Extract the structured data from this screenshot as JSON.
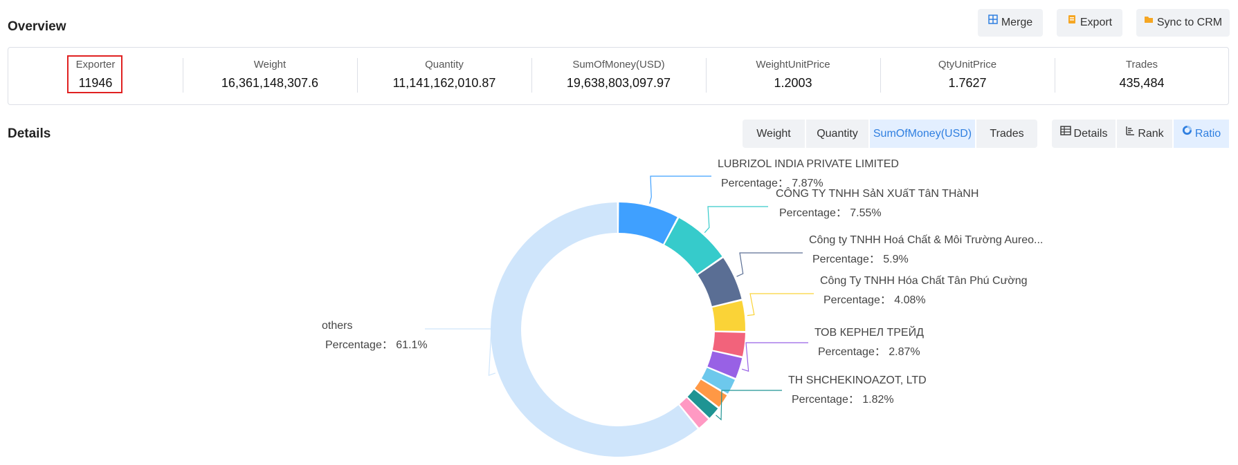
{
  "overview": {
    "title": "Overview",
    "merge_label": "Merge",
    "export_label": "Export",
    "sync_label": "Sync to CRM",
    "stats": [
      {
        "label": "Exporter",
        "value": "11946"
      },
      {
        "label": "Weight",
        "value": "16,361,148,307.6"
      },
      {
        "label": "Quantity",
        "value": "11,141,162,010.87"
      },
      {
        "label": "SumOfMoney(USD)",
        "value": "19,638,803,097.97"
      },
      {
        "label": "WeightUnitPrice",
        "value": "1.2003"
      },
      {
        "label": "QtyUnitPrice",
        "value": "1.7627"
      },
      {
        "label": "Trades",
        "value": "435,484"
      }
    ]
  },
  "details": {
    "title": "Details",
    "metric_tabs": [
      {
        "label": "Weight"
      },
      {
        "label": "Quantity"
      },
      {
        "label": "SumOfMoney(USD)"
      },
      {
        "label": "Trades"
      }
    ],
    "selected_metric": "SumOfMoney(USD)",
    "view_tabs": [
      {
        "label": "Details",
        "icon": "table-icon"
      },
      {
        "label": "Rank",
        "icon": "rank-icon"
      },
      {
        "label": "Ratio",
        "icon": "pie-icon"
      }
    ],
    "selected_view": "Ratio"
  },
  "chart_data": {
    "type": "pie",
    "percentage_prefix": "Percentage：",
    "slices": [
      {
        "name": "LUBRIZOL INDIA PRIVATE LIMITED",
        "value": 7.87,
        "percent_label": "7.87%",
        "color": "#3fa0ff",
        "labeled": true
      },
      {
        "name": "CÔNG TY TNHH SảN XUấT TâN THàNH",
        "value": 7.55,
        "percent_label": "7.55%",
        "color": "#36cbcb",
        "labeled": true
      },
      {
        "name": "Công ty TNHH Hoá Chất & Môi Trường Aureo...",
        "value": 5.9,
        "percent_label": "5.9%",
        "color": "#5a6e94",
        "labeled": true
      },
      {
        "name": "Công Ty TNHH Hóa Chất Tân Phú Cường",
        "value": 4.08,
        "percent_label": "4.08%",
        "color": "#fad337",
        "labeled": true
      },
      {
        "name": "",
        "value": 3.2,
        "percent_label": "",
        "color": "#f2637b",
        "labeled": false
      },
      {
        "name": "ТОВ КЕРНЕЛ ТРЕЙД",
        "value": 2.87,
        "percent_label": "2.87%",
        "color": "#9861e5",
        "labeled": true
      },
      {
        "name": "",
        "value": 2.2,
        "percent_label": "",
        "color": "#6dc8ec",
        "labeled": false
      },
      {
        "name": "",
        "value": 2.0,
        "percent_label": "",
        "color": "#ff9845",
        "labeled": false
      },
      {
        "name": "TH SHCHEKINOAZOT, LTD",
        "value": 1.82,
        "percent_label": "1.82%",
        "color": "#1e9493",
        "labeled": true
      },
      {
        "name": "",
        "value": 1.8,
        "percent_label": "",
        "color": "#ff99c3",
        "labeled": false
      },
      {
        "name": "others",
        "value": 61.1,
        "percent_label": "61.1%",
        "color": "#cfe5fb",
        "labeled": true
      }
    ]
  }
}
